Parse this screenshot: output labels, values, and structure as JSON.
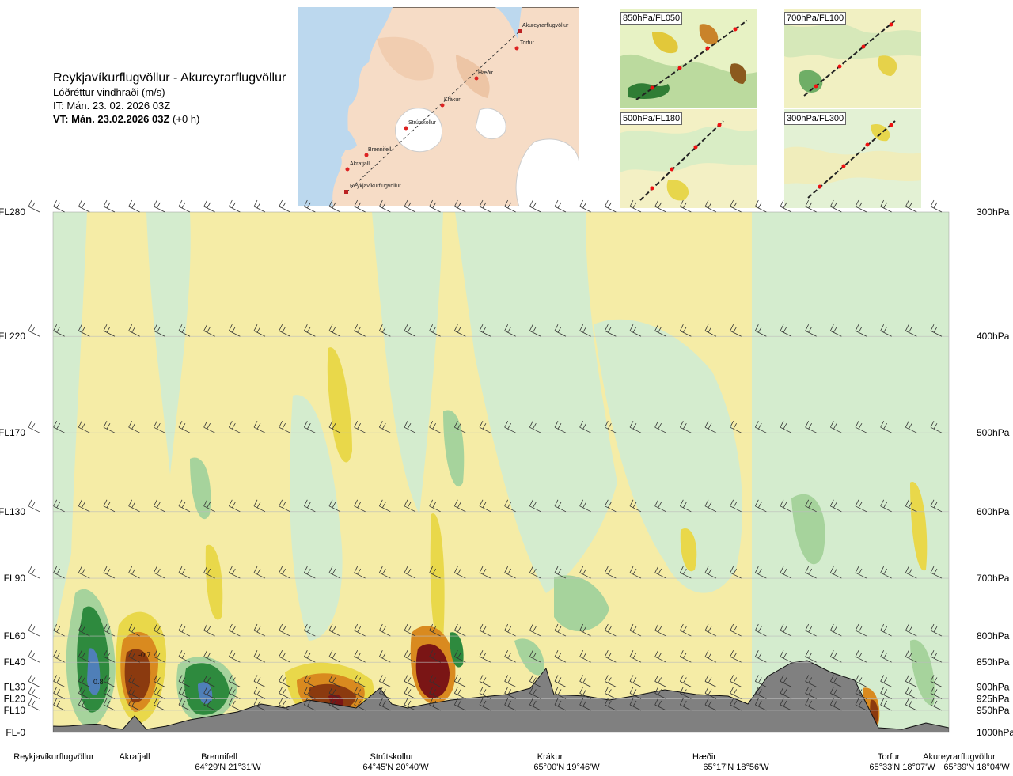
{
  "header": {
    "title": "Reykjavíkurflugvöllur - Akureyrarflugvöllur",
    "subtitle": "Lóðréttur vindhraði (m/s)",
    "issue_time": "IT: Mán. 23. 02. 2026 03Z",
    "valid_time": "VT: Mán. 23.02.2026 03Z",
    "valid_offset": "(+0 h)"
  },
  "map_inset": {
    "labels": [
      "Akureyrarflugvöllur",
      "Torfur",
      "Hæðir",
      "Krákur",
      "Strútskollur",
      "Brennifell",
      "Akrafjall",
      "Reykjavíkurflugvöllur"
    ]
  },
  "mini_maps": [
    {
      "label": "850hPa/FL050"
    },
    {
      "label": "700hPa/FL100"
    },
    {
      "label": "500hPa/FL180"
    },
    {
      "label": "300hPa/FL300"
    }
  ],
  "chart_data": {
    "type": "heatmap",
    "variable": "Lóðréttur vindhraði (m/s)",
    "left_axis_flight_levels": [
      "FL280",
      "FL220",
      "FL170",
      "FL130",
      "FL90",
      "FL60",
      "FL40",
      "FL30",
      "FL20",
      "FL10",
      "FL-0"
    ],
    "right_axis_pressure_levels": [
      "300hPa",
      "400hPa",
      "500hPa",
      "600hPa",
      "700hPa",
      "800hPa",
      "850hPa",
      "900hPa",
      "925hPa",
      "950hPa",
      "1000hPa"
    ],
    "pressure_values_hPa": [
      300,
      400,
      500,
      600,
      700,
      800,
      850,
      900,
      925,
      950,
      1000
    ],
    "wind_barb_levels_hPa": [
      300,
      400,
      500,
      600,
      700,
      800,
      850,
      900,
      925,
      950
    ],
    "waypoints": [
      {
        "name": "Reykjavíkurflugvöllur",
        "coord": "",
        "distance_fraction": 0.0
      },
      {
        "name": "Akrafjall",
        "coord": "",
        "distance_fraction": 0.09
      },
      {
        "name": "Brennifell",
        "coord": "64°29'N 21°31'W",
        "distance_fraction": 0.19
      },
      {
        "name": "Strútskollur",
        "coord": "64°45'N 20°40'W",
        "distance_fraction": 0.38
      },
      {
        "name": "Krákur",
        "coord": "65°00'N 19°46'W",
        "distance_fraction": 0.57
      },
      {
        "name": "Hæðir",
        "coord": "65°17'N 18°56'W",
        "distance_fraction": 0.77
      },
      {
        "name": "Torfur",
        "coord": "65°33'N 18°07'W",
        "distance_fraction": 0.95
      },
      {
        "name": "Akureyrarflugvöllur",
        "coord": "65°39'N 18°04'W",
        "distance_fraction": 1.0
      }
    ],
    "annotations": [
      "-0.7",
      "0.8"
    ],
    "colors": {
      "strong_down": "#7a1515",
      "moderate_down": "#8b3a0f",
      "down_orange": "#d98a1f",
      "down_yellow": "#e9d84a",
      "weak_down": "#f5eca6",
      "neutral": "#ffffff",
      "weak_up": "#ddf0d8",
      "up_light": "#cfe9c9",
      "up_mid": "#9fcf97",
      "up_dark": "#2e8a3e",
      "strong_up": "#4f7fb8",
      "terrain": "#808080"
    }
  }
}
